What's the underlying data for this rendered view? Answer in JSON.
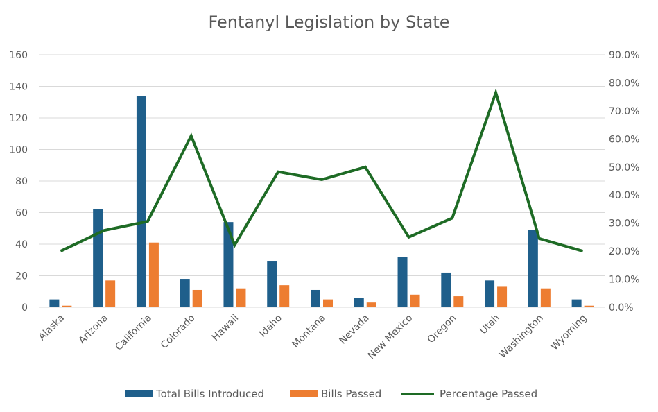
{
  "chart_data": {
    "type": "bar",
    "title": "Fentanyl Legislation by State",
    "categories": [
      "Alaska",
      "Arizona",
      "California",
      "Colorado",
      "Hawaii",
      "Idaho",
      "Montana",
      "Nevada",
      "New Mexico",
      "Oregon",
      "Utah",
      "Washington",
      "Wyoming"
    ],
    "series": [
      {
        "name": "Total Bills Introduced",
        "type": "bar",
        "axis": "left",
        "color": "#1f5f8b",
        "values": [
          5,
          62,
          134,
          18,
          54,
          29,
          11,
          6,
          32,
          22,
          17,
          49,
          5
        ]
      },
      {
        "name": "Bills Passed",
        "type": "bar",
        "axis": "left",
        "color": "#ed7d31",
        "values": [
          1,
          17,
          41,
          11,
          12,
          14,
          5,
          3,
          8,
          7,
          13,
          12,
          1
        ]
      },
      {
        "name": "Percentage Passed",
        "type": "line",
        "axis": "right",
        "color": "#1e6b25",
        "values": [
          20.0,
          27.4,
          30.6,
          61.1,
          22.2,
          48.3,
          45.5,
          50.0,
          25.0,
          31.8,
          76.5,
          24.5,
          20.0
        ]
      }
    ],
    "ylim_left": [
      0,
      160
    ],
    "yticks_left": [
      "0",
      "20",
      "40",
      "60",
      "80",
      "100",
      "120",
      "140",
      "160"
    ],
    "ylim_right": [
      0,
      90
    ],
    "yticks_right": [
      "0.0%",
      "10.0%",
      "20.0%",
      "30.0%",
      "40.0%",
      "50.0%",
      "60.0%",
      "70.0%",
      "80.0%",
      "90.0%"
    ],
    "grid": true,
    "legend_position": "bottom"
  }
}
